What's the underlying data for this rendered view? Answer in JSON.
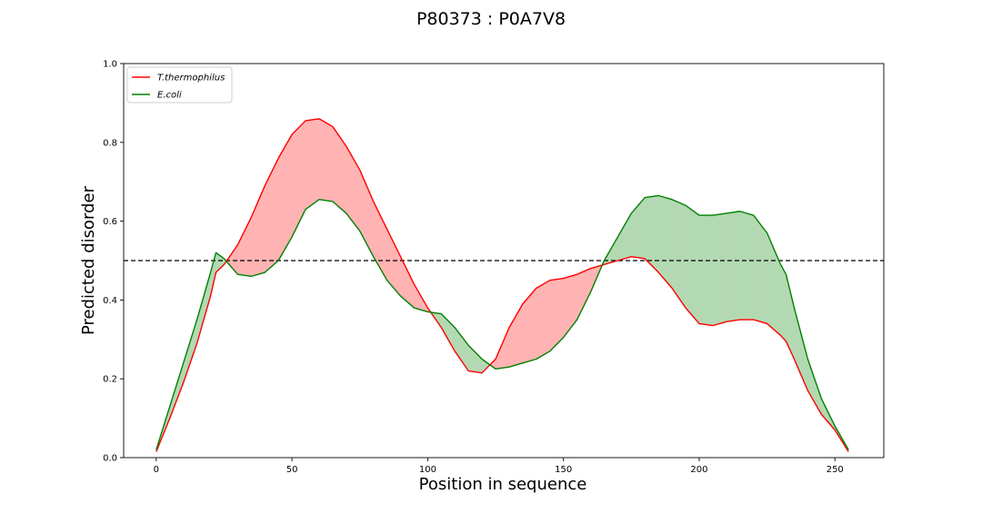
{
  "chart_data": {
    "type": "area",
    "title": "P80373 : P0A7V8",
    "xlabel": "Position in sequence",
    "ylabel": "Predicted disorder",
    "xlim": [
      -12,
      268
    ],
    "ylim": [
      0.0,
      1.0
    ],
    "xticks": [
      0,
      50,
      100,
      150,
      200,
      250
    ],
    "yticks": [
      0.0,
      0.2,
      0.4,
      0.6,
      0.8,
      1.0
    ],
    "threshold": 0.5,
    "legend_position": "top-left",
    "fill_rule": "red where T.thermophilus above E.coli, green where E.coli above T.thermophilus",
    "series": [
      {
        "name": "T.thermophilus",
        "color": "#ff0000",
        "fill": "#ffb3b3",
        "x": [
          0,
          5,
          10,
          15,
          20,
          22,
          25,
          30,
          35,
          40,
          45,
          50,
          55,
          60,
          65,
          70,
          75,
          80,
          85,
          90,
          95,
          100,
          105,
          110,
          115,
          120,
          125,
          130,
          135,
          140,
          145,
          150,
          155,
          160,
          165,
          170,
          175,
          180,
          185,
          190,
          195,
          200,
          205,
          210,
          215,
          220,
          225,
          230,
          232,
          235,
          240,
          245,
          250,
          255
        ],
        "y": [
          0.015,
          0.1,
          0.19,
          0.29,
          0.41,
          0.47,
          0.49,
          0.54,
          0.61,
          0.69,
          0.76,
          0.82,
          0.855,
          0.86,
          0.84,
          0.79,
          0.73,
          0.65,
          0.58,
          0.51,
          0.44,
          0.38,
          0.33,
          0.27,
          0.22,
          0.215,
          0.25,
          0.33,
          0.39,
          0.43,
          0.45,
          0.455,
          0.465,
          0.48,
          0.49,
          0.5,
          0.51,
          0.505,
          0.47,
          0.43,
          0.38,
          0.34,
          0.335,
          0.345,
          0.35,
          0.35,
          0.34,
          0.31,
          0.295,
          0.25,
          0.17,
          0.11,
          0.07,
          0.015
        ]
      },
      {
        "name": "E.coli",
        "color": "#008000",
        "fill": "#b3d9b3",
        "x": [
          0,
          5,
          10,
          15,
          20,
          22,
          25,
          30,
          35,
          40,
          45,
          50,
          55,
          60,
          65,
          70,
          75,
          80,
          85,
          90,
          95,
          100,
          105,
          110,
          115,
          120,
          125,
          130,
          135,
          140,
          145,
          150,
          155,
          160,
          165,
          170,
          175,
          180,
          185,
          190,
          195,
          200,
          205,
          210,
          215,
          220,
          225,
          230,
          232,
          235,
          240,
          245,
          250,
          255
        ],
        "y": [
          0.02,
          0.13,
          0.24,
          0.35,
          0.47,
          0.52,
          0.505,
          0.465,
          0.46,
          0.47,
          0.5,
          0.56,
          0.63,
          0.655,
          0.65,
          0.62,
          0.575,
          0.51,
          0.45,
          0.41,
          0.38,
          0.37,
          0.365,
          0.33,
          0.285,
          0.25,
          0.225,
          0.23,
          0.24,
          0.25,
          0.27,
          0.305,
          0.35,
          0.42,
          0.5,
          0.56,
          0.62,
          0.66,
          0.665,
          0.655,
          0.64,
          0.615,
          0.615,
          0.62,
          0.625,
          0.615,
          0.57,
          0.49,
          0.465,
          0.38,
          0.25,
          0.15,
          0.08,
          0.02
        ]
      }
    ]
  }
}
